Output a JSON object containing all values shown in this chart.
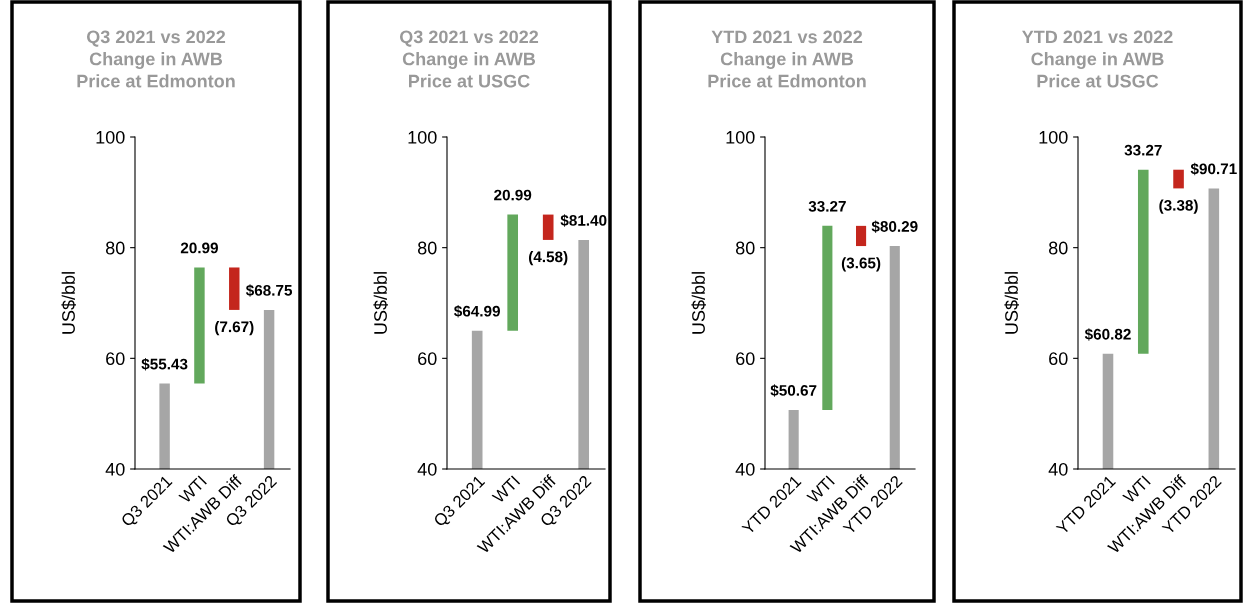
{
  "chart_data": [
    {
      "type": "bar",
      "title": "Q3 2021 vs 2022\nChange in AWB\nPrice at Edmonton",
      "ylabel": "US$/bbl",
      "categories": [
        "Q3 2021",
        "WTI",
        "WTI:AWB Diff",
        "Q3 2022"
      ],
      "values": [
        55.43,
        20.99,
        -7.67,
        68.75
      ],
      "base": [
        null,
        55.43,
        76.42,
        null
      ],
      "colors": [
        "#a6a6a6",
        "#62a85c",
        "#c4261d",
        "#a6a6a6"
      ],
      "value_labels": [
        "$55.43",
        "20.99",
        "(7.67)",
        "$68.75"
      ],
      "ylim": [
        40,
        100
      ],
      "yticks": [
        40,
        60,
        80,
        100
      ]
    },
    {
      "type": "bar",
      "title": "Q3 2021 vs 2022\nChange in AWB\nPrice at USGC",
      "ylabel": "US$/bbl",
      "categories": [
        "Q3 2021",
        "WTI",
        "WTI:AWB Diff",
        "Q3 2022"
      ],
      "values": [
        64.99,
        20.99,
        -4.58,
        81.4
      ],
      "base": [
        null,
        64.99,
        85.98,
        null
      ],
      "colors": [
        "#a6a6a6",
        "#62a85c",
        "#c4261d",
        "#a6a6a6"
      ],
      "value_labels": [
        "$64.99",
        "20.99",
        "(4.58)",
        "$81.40"
      ],
      "ylim": [
        40,
        100
      ],
      "yticks": [
        40,
        60,
        80,
        100
      ]
    },
    {
      "type": "bar",
      "title": "YTD 2021 vs 2022\nChange in AWB\nPrice at Edmonton",
      "ylabel": "US$/bbl",
      "categories": [
        "YTD 2021",
        "WTI",
        "WTI:AWB Diff",
        "YTD 2022"
      ],
      "values": [
        50.67,
        33.27,
        -3.65,
        80.29
      ],
      "base": [
        null,
        50.67,
        83.94,
        null
      ],
      "colors": [
        "#a6a6a6",
        "#62a85c",
        "#c4261d",
        "#a6a6a6"
      ],
      "value_labels": [
        "$50.67",
        "33.27",
        "(3.65)",
        "$80.29"
      ],
      "ylim": [
        40,
        100
      ],
      "yticks": [
        40,
        60,
        80,
        100
      ]
    },
    {
      "type": "bar",
      "title": "YTD 2021 vs 2022\nChange in AWB\nPrice at USGC",
      "ylabel": "US$/bbl",
      "categories": [
        "YTD 2021",
        "WTI",
        "WTI:AWB Diff",
        "YTD 2022"
      ],
      "values": [
        60.82,
        33.27,
        -3.38,
        90.71
      ],
      "base": [
        null,
        60.82,
        94.09,
        null
      ],
      "colors": [
        "#a6a6a6",
        "#62a85c",
        "#c4261d",
        "#a6a6a6"
      ],
      "value_labels": [
        "$60.82",
        "33.27",
        "(3.38)",
        "$90.71"
      ],
      "ylim": [
        40,
        100
      ],
      "yticks": [
        40,
        60,
        80,
        100
      ]
    }
  ]
}
